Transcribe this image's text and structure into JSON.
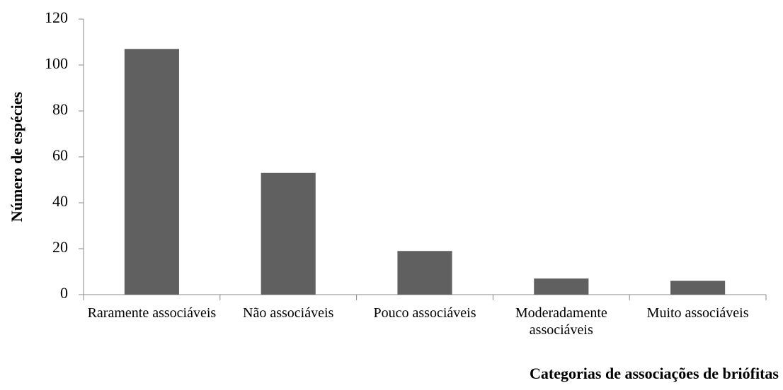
{
  "chart_data": {
    "type": "bar",
    "x_label": "Categorias de associações de briófitas",
    "y_label": "Número de espécies",
    "categories": [
      "Raramente associáveis",
      "Não associáveis",
      "Pouco associáveis",
      "Moderadamente associáveis",
      "Muito associáveis"
    ],
    "values": [
      107,
      53,
      19,
      7,
      6
    ],
    "color": "#606060",
    "ylim": [
      0,
      120
    ],
    "yticks": [
      0,
      20,
      40,
      60,
      80,
      100,
      120
    ],
    "grid": false
  }
}
